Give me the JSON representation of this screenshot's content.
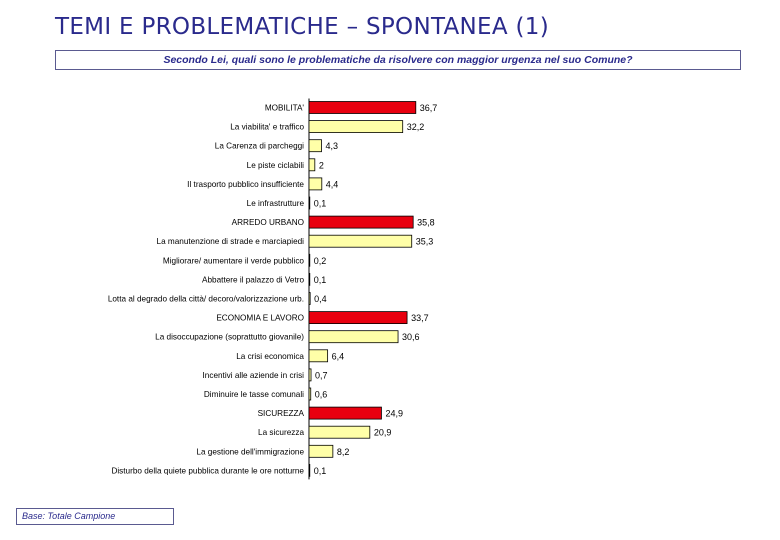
{
  "header": {
    "title": "TEMI E PROBLEMATICHE – SPONTANEA (1)",
    "question": "Secondo Lei, quali sono le problematiche da risolvere con maggior urgenza nel suo Comune?"
  },
  "footer": {
    "base_note": "Base: Totale Campione"
  },
  "colors": {
    "category_bar": "#e8000f",
    "item_bar": "#ffffa8",
    "title": "#2a2a8c"
  },
  "chart_data": {
    "type": "bar",
    "orientation": "horizontal",
    "categories": [
      "MOBILITA'",
      "La viabilita' e traffico",
      "La Carenza di parcheggi",
      "Le piste ciclabili",
      "Il trasporto pubblico insufficiente",
      "Le infrastrutture",
      "ARREDO URBANO",
      "La manutenzione di strade e marciapiedi",
      "Migliorare/ aumentare il verde pubblico",
      "Abbattere il palazzo di Vetro",
      "Lotta al degrado della città/ decoro/valorizzazione urb.",
      "ECONOMIA E LAVORO",
      "La disoccupazione (soprattutto giovanile)",
      "La crisi economica",
      "Incentivi alle aziende in crisi",
      "Diminuire le tasse comunali",
      "SICUREZZA",
      "La sicurezza",
      "La gestione dell'immigrazione",
      "Disturbo della quiete pubblica durante le ore notturne"
    ],
    "values": [
      36.7,
      32.2,
      4.3,
      2,
      4.4,
      0.1,
      35.8,
      35.3,
      0.2,
      0.1,
      0.4,
      33.7,
      30.6,
      6.4,
      0.7,
      0.6,
      24.9,
      20.9,
      8.2,
      0.1
    ],
    "value_labels": [
      "36,7",
      "32,2",
      "4,3",
      "2",
      "4,4",
      "0,1",
      "35,8",
      "35,3",
      "0,2",
      "0,1",
      "0,4",
      "33,7",
      "30,6",
      "6,4",
      "0,7",
      "0,6",
      "24,9",
      "20,9",
      "8,2",
      "0,1"
    ],
    "is_group_header": [
      true,
      false,
      false,
      false,
      false,
      false,
      true,
      false,
      false,
      false,
      false,
      true,
      false,
      false,
      false,
      false,
      true,
      false,
      false,
      false
    ],
    "xlim": [
      0,
      40
    ],
    "grid": false,
    "legend": "none"
  }
}
